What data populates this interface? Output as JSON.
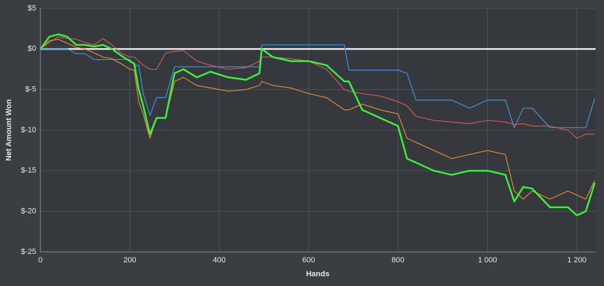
{
  "chart_data": {
    "type": "line",
    "xlabel": "Hands",
    "ylabel": "Net Amount Won",
    "x": [
      0,
      20,
      40,
      60,
      80,
      100,
      120,
      140,
      160,
      180,
      200,
      210,
      220,
      230,
      245,
      260,
      280,
      300,
      320,
      350,
      380,
      420,
      460,
      490,
      495,
      520,
      560,
      600,
      640,
      680,
      690,
      720,
      760,
      800,
      820,
      840,
      880,
      920,
      960,
      1000,
      1040,
      1060,
      1080,
      1100,
      1140,
      1180,
      1200,
      1220,
      1240
    ],
    "series": [
      {
        "color": "#3d8fd6",
        "width": 1.3,
        "values": [
          0,
          0,
          0,
          0,
          -0.6,
          -0.6,
          -1.3,
          -1.3,
          -1.3,
          -1.3,
          -1.3,
          -2,
          -2,
          -5.5,
          -8.2,
          -6,
          -6,
          -2.2,
          -2.2,
          -2.2,
          -2.2,
          -2.2,
          -2.2,
          -2.2,
          0.5,
          0.5,
          0.5,
          0.5,
          0.5,
          0.5,
          -2.6,
          -2.6,
          -2.6,
          -2.6,
          -3,
          -6.3,
          -6.3,
          -6.3,
          -7.3,
          -6.3,
          -6.3,
          -9.7,
          -7.3,
          -7.3,
          -9.7,
          -9.7,
          -9.7,
          -9.7,
          -6.1
        ]
      },
      {
        "color": "#e05a5a",
        "width": 1.1,
        "values": [
          0,
          0.8,
          1.5,
          1.3,
          1.2,
          0.8,
          0.5,
          1.3,
          0.5,
          -0.5,
          -1,
          -1,
          -1.5,
          -2,
          -2.5,
          -2.5,
          -0.5,
          -0.3,
          -0.2,
          -1.5,
          -2,
          -2.5,
          -2.3,
          -1.5,
          -1,
          -1,
          -1.2,
          -1.5,
          -2.5,
          -5,
          -5.2,
          -5.5,
          -5.8,
          -6.5,
          -7,
          -8.3,
          -8.8,
          -9,
          -9.2,
          -8.8,
          -9,
          -9.3,
          -9.2,
          -9.5,
          -9.5,
          -10,
          -11,
          -10.5,
          -10.5
        ]
      },
      {
        "color": "#f0932b",
        "width": 1.1,
        "values": [
          0,
          1,
          1.2,
          0.7,
          0.2,
          0,
          -0.5,
          -1,
          -1.2,
          -1.8,
          -2.5,
          -2.6,
          -6.5,
          -8,
          -11,
          -8.5,
          -8.5,
          -4,
          -3.5,
          -4.5,
          -4.8,
          -5.2,
          -5,
          -4.5,
          -4,
          -4.5,
          -4.8,
          -5.5,
          -6,
          -7.5,
          -7.5,
          -6.8,
          -7.5,
          -8,
          -11,
          -11.5,
          -12.5,
          -13.5,
          -13,
          -12.5,
          -13,
          -17.5,
          -18.5,
          -17.5,
          -18.5,
          -17.5,
          -18,
          -18.5,
          -16.2
        ]
      },
      {
        "color": "#3cf03c",
        "width": 2.5,
        "values": [
          0,
          1.5,
          1.8,
          1.5,
          0.5,
          0.5,
          0.3,
          0.5,
          0,
          -0.8,
          -1.5,
          -1.8,
          -5,
          -7,
          -10.5,
          -8.5,
          -8.5,
          -3,
          -2.5,
          -3.5,
          -2.8,
          -3.5,
          -3.8,
          -3,
          0,
          -1,
          -1.5,
          -1.5,
          -2,
          -4,
          -4,
          -7.5,
          -8.5,
          -9.5,
          -13.5,
          -14,
          -15,
          -15.5,
          -15,
          -15,
          -15.5,
          -18.8,
          -17,
          -17.2,
          -19.5,
          -19.5,
          -20.5,
          -20,
          -16.5
        ]
      }
    ],
    "xlim": [
      0,
      1242
    ],
    "xticks": [
      0,
      200,
      400,
      600,
      800,
      {
        "value": 1000,
        "label": "1 000"
      },
      {
        "value": 1200,
        "label": "1 200"
      }
    ],
    "ylim": [
      -25,
      5
    ],
    "yticks": [
      {
        "value": 5,
        "label": "$5"
      },
      {
        "value": 0,
        "label": "$0"
      },
      {
        "value": -5,
        "label": "$-5"
      },
      {
        "value": -10,
        "label": "$-10"
      },
      {
        "value": -15,
        "label": "$-15"
      },
      {
        "value": -20,
        "label": "$-20"
      },
      {
        "value": -25,
        "label": "$-25"
      }
    ],
    "grid": true
  }
}
